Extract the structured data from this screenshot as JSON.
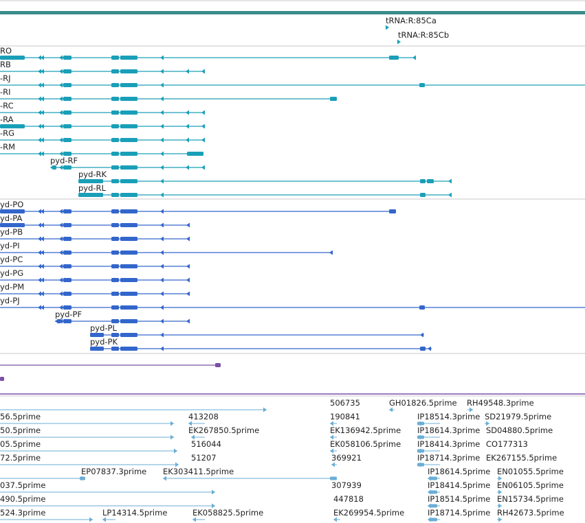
{
  "colors": {
    "header_bar": "#3b8d8a",
    "track_top": "#1a9fb8",
    "track_mid": "#3366cc",
    "track_purple": "#7b4fa6",
    "track_est": "#6aaed6",
    "separator": "#c8c8c8"
  },
  "trna": [
    {
      "label": "tRNA:R:85Ca"
    },
    {
      "label": "tRNA:R:85Cb"
    }
  ],
  "top_transcripts": [
    {
      "label": "RO"
    },
    {
      "label": "RB"
    },
    {
      "label": "-RJ"
    },
    {
      "label": "-RI"
    },
    {
      "label": "-RC"
    },
    {
      "label": "-RA"
    },
    {
      "label": "-RG"
    },
    {
      "label": "-RM"
    },
    {
      "label": "pyd-RF"
    },
    {
      "label": "pyd-RK"
    },
    {
      "label": "pyd-RL"
    }
  ],
  "mid_transcripts": [
    {
      "label": "yd-PO"
    },
    {
      "label": "yd-PA"
    },
    {
      "label": "yd-PB"
    },
    {
      "label": "yd-PI"
    },
    {
      "label": "yd-PC"
    },
    {
      "label": "yd-PG"
    },
    {
      "label": "yd-PM"
    },
    {
      "label": "yd-PJ"
    },
    {
      "label": "pyd-PF"
    },
    {
      "label": "pyd-PL"
    },
    {
      "label": "pyd-PK"
    }
  ],
  "est_labels": [
    {
      "label": "506735"
    },
    {
      "label": "GH01826.5prime"
    },
    {
      "label": "RH49548.3prime"
    },
    {
      "label": "56.5prime"
    },
    {
      "label": "413208"
    },
    {
      "label": "190841"
    },
    {
      "label": "IP18514.3prime"
    },
    {
      "label": "SD21979.5prime"
    },
    {
      "label": "50.5prime"
    },
    {
      "label": "EK267850.5prime"
    },
    {
      "label": "EK136942.5prime"
    },
    {
      "label": "IP18614.3prime"
    },
    {
      "label": "SD04880.5prime"
    },
    {
      "label": "05.5prime"
    },
    {
      "label": "516044"
    },
    {
      "label": "EK058106.5prime"
    },
    {
      "label": "IP18414.3prime"
    },
    {
      "label": "CO177313"
    },
    {
      "label": "72.5prime"
    },
    {
      "label": "51207"
    },
    {
      "label": "369921"
    },
    {
      "label": "IP18714.3prime"
    },
    {
      "label": "EK267155.5prime"
    },
    {
      "label": "EP07837.3prime"
    },
    {
      "label": "EK303411.5prime"
    },
    {
      "label": "IP18614.5prime"
    },
    {
      "label": "EN01055.5prime"
    },
    {
      "label": "037.5prime"
    },
    {
      "label": "307939"
    },
    {
      "label": "IP18414.5prime"
    },
    {
      "label": "EN06105.5prime"
    },
    {
      "label": "490.5prime"
    },
    {
      "label": "447818"
    },
    {
      "label": "IP18514.5prime"
    },
    {
      "label": "EN15734.5prime"
    },
    {
      "label": "524.3prime"
    },
    {
      "label": "LP14314.5prime"
    },
    {
      "label": "EK058825.5prime"
    },
    {
      "label": "EK269954.5prime"
    },
    {
      "label": "IP18714.5prime"
    },
    {
      "label": "RH42673.5prime"
    }
  ]
}
